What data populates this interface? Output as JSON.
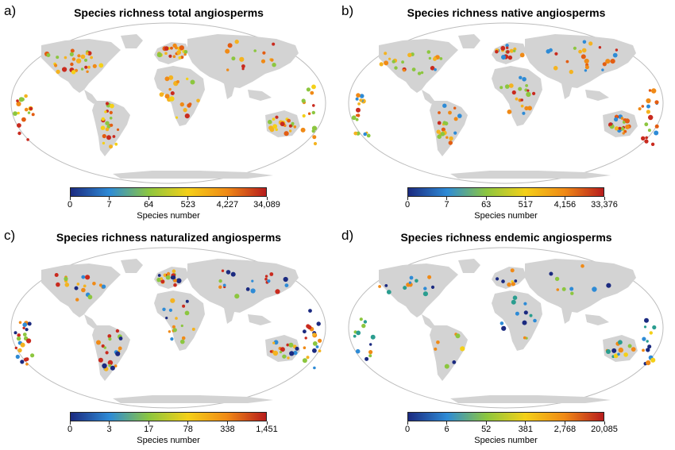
{
  "colorbar_colors": [
    "#1b2a80",
    "#2e8bd6",
    "#8cc63f",
    "#f4d018",
    "#f08a16",
    "#b71c1c"
  ],
  "land_color": "#d3d3d3",
  "panels": [
    {
      "letter": "a)",
      "title": "Species richness total angiosperms",
      "legend_title": "Species number",
      "ticks": [
        "0",
        "7",
        "64",
        "523",
        "4,227",
        "34,089"
      ],
      "map_icon": "world-map-total-richness"
    },
    {
      "letter": "b)",
      "title": "Species richness native angiosperms",
      "legend_title": "Species number",
      "ticks": [
        "0",
        "7",
        "63",
        "517",
        "4,156",
        "33,376"
      ],
      "map_icon": "world-map-native-richness"
    },
    {
      "letter": "c)",
      "title": "Species richness naturalized angiosperms",
      "legend_title": "Species number",
      "ticks": [
        "0",
        "3",
        "17",
        "78",
        "338",
        "1,451"
      ],
      "map_icon": "world-map-naturalized-richness"
    },
    {
      "letter": "d)",
      "title": "Species richness endemic angiosperms",
      "legend_title": "Species number",
      "ticks": [
        "0",
        "6",
        "52",
        "381",
        "2,768",
        "20,085"
      ],
      "map_icon": "world-map-endemic-richness"
    }
  ]
}
